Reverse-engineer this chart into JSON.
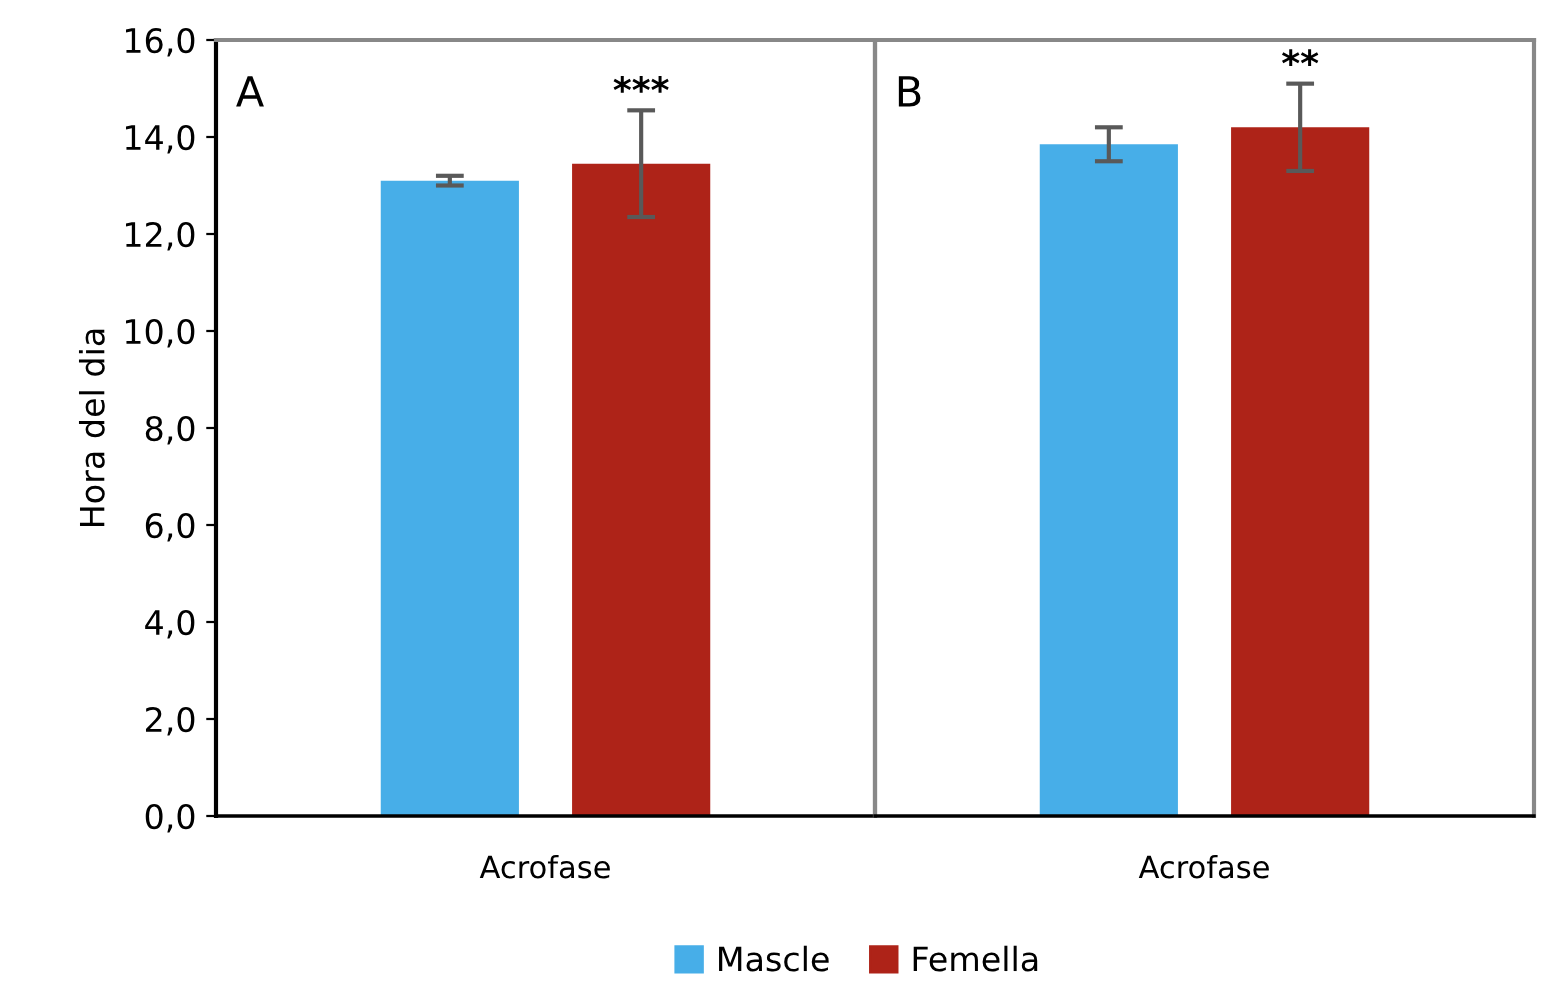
{
  "chart_data": {
    "type": "bar",
    "ylabel": "Hora del dia",
    "categories": [
      "Acrofase",
      "Acrofase"
    ],
    "annotations": [
      "A",
      "B",
      "***",
      "**"
    ],
    "series": [
      {
        "name": "Mascle",
        "color": "#47aee8",
        "values": [
          13.1,
          13.85
        ],
        "errors": [
          0.1,
          0.35
        ]
      },
      {
        "name": "Femella",
        "color": "#ae2318",
        "values": [
          13.45,
          14.2
        ],
        "errors": [
          1.1,
          0.9
        ]
      }
    ],
    "ylim": [
      0,
      16
    ],
    "yticks": [
      {
        "value": 0,
        "label": "0,0"
      },
      {
        "value": 2,
        "label": "2,0"
      },
      {
        "value": 4,
        "label": "4,0"
      },
      {
        "value": 6,
        "label": "6,0"
      },
      {
        "value": 8,
        "label": "8,0"
      },
      {
        "value": 10,
        "label": "10,0"
      },
      {
        "value": 12,
        "label": "12,0"
      },
      {
        "value": 14,
        "label": "14,0"
      },
      {
        "value": 16,
        "label": "16,0"
      }
    ],
    "legend": "bottom"
  }
}
